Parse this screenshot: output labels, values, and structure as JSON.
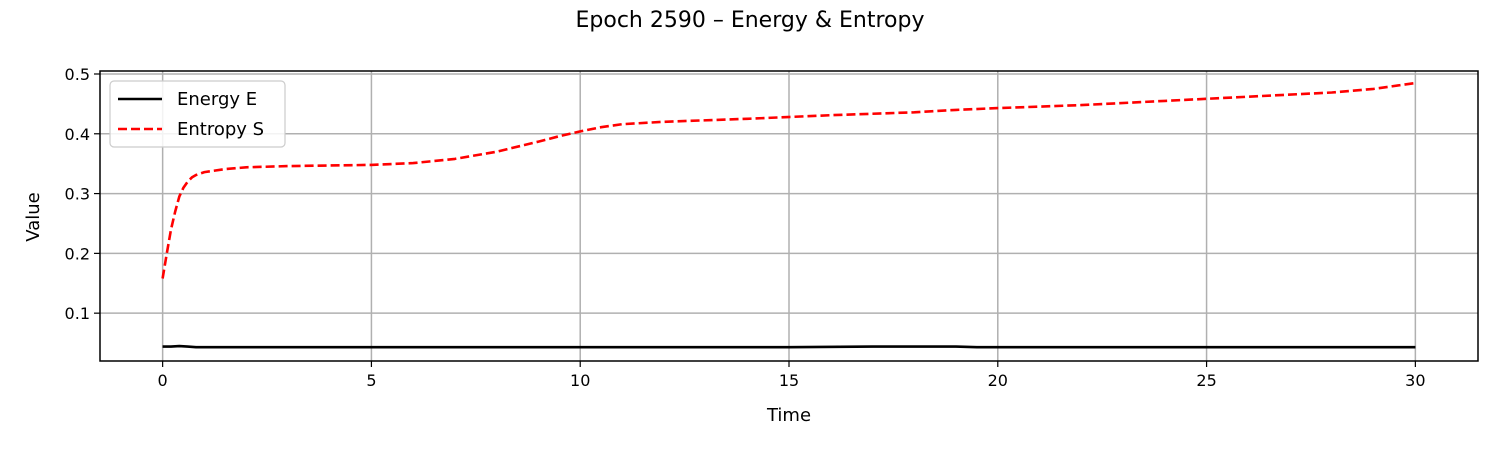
{
  "chart_data": {
    "type": "line",
    "title": "Epoch 2590 – Energy & Entropy",
    "xlabel": "Time",
    "ylabel": "Value",
    "xlim": [
      -1.5,
      31.5
    ],
    "ylim": [
      0.02,
      0.505
    ],
    "xticks": [
      0,
      5,
      10,
      15,
      20,
      25,
      30
    ],
    "yticks": [
      0.1,
      0.2,
      0.3,
      0.4,
      0.5
    ],
    "xtick_labels": [
      "0",
      "5",
      "10",
      "15",
      "20",
      "25",
      "30"
    ],
    "ytick_labels": [
      "0.1",
      "0.2",
      "0.3",
      "0.4",
      "0.5"
    ],
    "grid": true,
    "legend_position": "upper-left",
    "series": [
      {
        "name": "Energy E",
        "color": "#000000",
        "style": "solid",
        "x": [
          0,
          0.2,
          0.4,
          0.6,
          0.8,
          1,
          2,
          5,
          10,
          15,
          17,
          19,
          19.5,
          20,
          25,
          30
        ],
        "y": [
          0.044,
          0.044,
          0.045,
          0.044,
          0.043,
          0.043,
          0.043,
          0.043,
          0.043,
          0.043,
          0.044,
          0.044,
          0.043,
          0.043,
          0.043,
          0.043
        ]
      },
      {
        "name": "Entropy S",
        "color": "#ff0000",
        "style": "dashed",
        "x": [
          0,
          0.1,
          0.2,
          0.3,
          0.4,
          0.5,
          0.6,
          0.7,
          0.8,
          1,
          1.5,
          2,
          3,
          4,
          5,
          6,
          7,
          8,
          9,
          9.5,
          10,
          10.5,
          11,
          12,
          14,
          16,
          18,
          19,
          20,
          22,
          24,
          26,
          28,
          29,
          30
        ],
        "y": [
          0.158,
          0.2,
          0.24,
          0.27,
          0.295,
          0.31,
          0.32,
          0.327,
          0.331,
          0.336,
          0.341,
          0.344,
          0.346,
          0.347,
          0.348,
          0.351,
          0.358,
          0.37,
          0.387,
          0.396,
          0.404,
          0.411,
          0.416,
          0.42,
          0.425,
          0.431,
          0.436,
          0.44,
          0.443,
          0.448,
          0.455,
          0.462,
          0.469,
          0.475,
          0.485
        ]
      }
    ]
  }
}
